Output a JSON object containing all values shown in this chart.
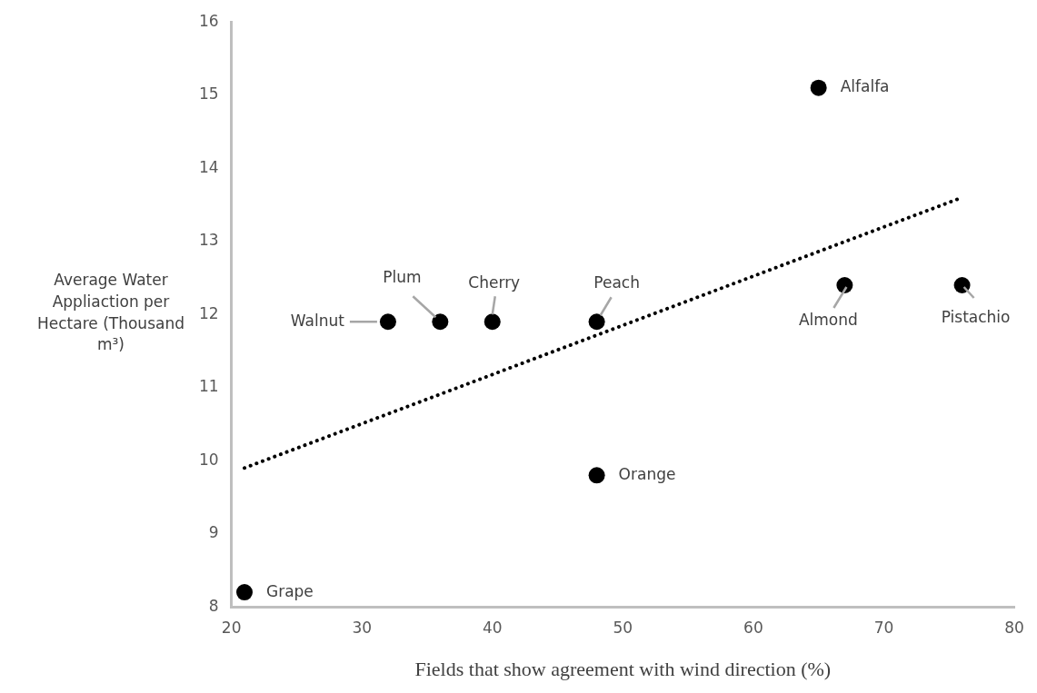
{
  "chart_data": {
    "type": "scatter",
    "xlabel": "Fields that show agreement with wind direction (%)",
    "ylabel": "Average Water Appliaction per Hectare (Thousand m³)",
    "xlim": [
      20,
      80
    ],
    "xticks": [
      20,
      30,
      40,
      50,
      60,
      70,
      80
    ],
    "ylim": [
      8,
      16
    ],
    "yticks": [
      8,
      9,
      10,
      11,
      12,
      13,
      14,
      15,
      16
    ],
    "grid": false,
    "legend": false,
    "series": [
      {
        "type": "scatter",
        "color": "#000000",
        "marker": "circle",
        "x": [
          21,
          32,
          36,
          40,
          48,
          48,
          65,
          67,
          76
        ],
        "values": [
          8.2,
          11.9,
          11.9,
          11.9,
          11.9,
          9.8,
          15.1,
          12.4,
          12.4
        ]
      },
      {
        "type": "line",
        "color": "#000000",
        "marker": "none",
        "line_style": "dotted",
        "x": [
          21,
          76
        ],
        "values": [
          9.9,
          13.6
        ]
      }
    ],
    "annotations": [
      {
        "text": "Grape",
        "x": 21,
        "y": 8.2
      },
      {
        "text": "Walnut",
        "x": 32,
        "y": 11.9
      },
      {
        "text": "Plum",
        "x": 36,
        "y": 11.9
      },
      {
        "text": "Cherry",
        "x": 40,
        "y": 11.9
      },
      {
        "text": "Peach",
        "x": 48,
        "y": 11.9
      },
      {
        "text": "Orange",
        "x": 48,
        "y": 9.8
      },
      {
        "text": "Alfalfa",
        "x": 65,
        "y": 15.1
      },
      {
        "text": "Almond",
        "x": 67,
        "y": 12.4
      },
      {
        "text": "Pistachio",
        "x": 76,
        "y": 12.4
      }
    ]
  }
}
